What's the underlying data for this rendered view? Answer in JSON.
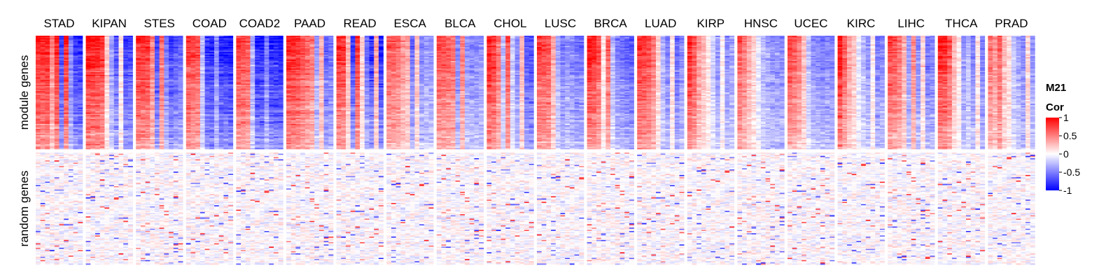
{
  "chart_data": {
    "type": "heatmap",
    "title": "",
    "column_groups": [
      "STAD",
      "KIPAN",
      "STES",
      "COAD",
      "COAD2",
      "PAAD",
      "READ",
      "ESCA",
      "BLCA",
      "CHOL",
      "LUSC",
      "BRCA",
      "LUAD",
      "KIRP",
      "HNSC",
      "UCEC",
      "KIRC",
      "LIHC",
      "THCA",
      "PRAD"
    ],
    "row_groups": [
      "module genes",
      "random genes"
    ],
    "legend": {
      "title_line1": "M21",
      "title_line2": "Cor",
      "ticks": [
        "1",
        "0.5",
        "0",
        "-0.5",
        "-1"
      ],
      "tick_values": [
        1,
        0.5,
        0,
        -0.5,
        -1
      ],
      "colors": {
        "high": "#ff0000",
        "mid": "#ffffff",
        "low": "#0000ff"
      },
      "range": [
        -1,
        1
      ],
      "placement": "right"
    },
    "module_profiles": {
      "STAD": [
        0.95,
        0.9,
        0.95,
        0.5,
        0.92,
        -0.8,
        0.9,
        -0.55,
        -0.85,
        -0.9
      ],
      "KIPAN": [
        1.0,
        0.95,
        0.92,
        0.85,
        0.2,
        -0.4,
        -0.7,
        0.1,
        -0.8,
        -0.75
      ],
      "STES": [
        0.9,
        0.88,
        0.85,
        0.5,
        -0.75,
        0.6,
        -0.55,
        -0.8,
        -0.7,
        -0.65
      ],
      "COAD": [
        0.85,
        0.8,
        0.75,
        -0.3,
        -0.85,
        -0.9,
        -0.5,
        -0.9,
        -0.9,
        -0.95
      ],
      "COAD2": [
        0.8,
        0.78,
        0.72,
        -0.35,
        -0.9,
        -0.9,
        -0.55,
        -0.9,
        -0.92,
        -0.95
      ],
      "PAAD": [
        0.92,
        0.9,
        0.85,
        0.75,
        0.65,
        0.55,
        -0.4,
        0.35,
        -0.65,
        -0.6
      ],
      "READ": [
        0.88,
        0.85,
        0.3,
        -0.8,
        0.85,
        0.2,
        -0.6,
        -0.85,
        0.4,
        -0.9
      ],
      "ESCA": [
        0.7,
        0.68,
        0.6,
        0.45,
        0.35,
        -0.6,
        0.25,
        -0.5,
        -0.4,
        -0.45
      ],
      "BLCA": [
        0.75,
        0.72,
        0.68,
        0.6,
        -0.5,
        0.55,
        -0.45,
        -0.5,
        -0.5,
        -0.45
      ],
      "CHOL": [
        0.95,
        0.85,
        0.6,
        -0.3,
        0.75,
        -0.2,
        -0.5,
        0.3,
        -0.7,
        -0.75
      ],
      "LUSC": [
        0.82,
        0.78,
        0.72,
        0.35,
        -0.35,
        -0.55,
        -0.45,
        -0.5,
        -0.6,
        -0.6
      ],
      "BRCA": [
        0.95,
        0.9,
        0.75,
        0.1,
        0.65,
        -0.3,
        -0.55,
        -0.6,
        -0.65,
        -0.7
      ],
      "LUAD": [
        0.92,
        0.88,
        0.78,
        0.6,
        0.2,
        -0.35,
        -0.55,
        0.15,
        -0.65,
        -0.5
      ],
      "KIRP": [
        0.95,
        0.75,
        0.45,
        0.3,
        0.1,
        -0.2,
        -0.45,
        0.05,
        -0.5,
        -0.4
      ],
      "HNSC": [
        0.7,
        0.55,
        0.35,
        0.2,
        -0.1,
        -0.3,
        -0.4,
        -0.45,
        -0.45,
        -0.5
      ],
      "UCEC": [
        0.78,
        0.7,
        0.55,
        0.3,
        -0.25,
        -0.45,
        -0.5,
        -0.55,
        -0.5,
        -0.55
      ],
      "KIRC": [
        0.98,
        0.7,
        0.4,
        0.25,
        -0.1,
        -0.3,
        -0.45,
        0.1,
        -0.55,
        -0.5
      ],
      "LIHC": [
        0.8,
        0.75,
        0.6,
        0.35,
        -0.45,
        0.5,
        -0.5,
        0.2,
        -0.6,
        -0.55
      ],
      "THCA": [
        0.95,
        0.9,
        0.7,
        0.3,
        0.1,
        -0.45,
        -0.3,
        -0.5,
        0.15,
        -0.55
      ],
      "PRAD": [
        0.6,
        0.45,
        0.7,
        0.3,
        0.15,
        -0.25,
        -0.4,
        -0.5,
        0.2,
        -0.45
      ]
    }
  }
}
